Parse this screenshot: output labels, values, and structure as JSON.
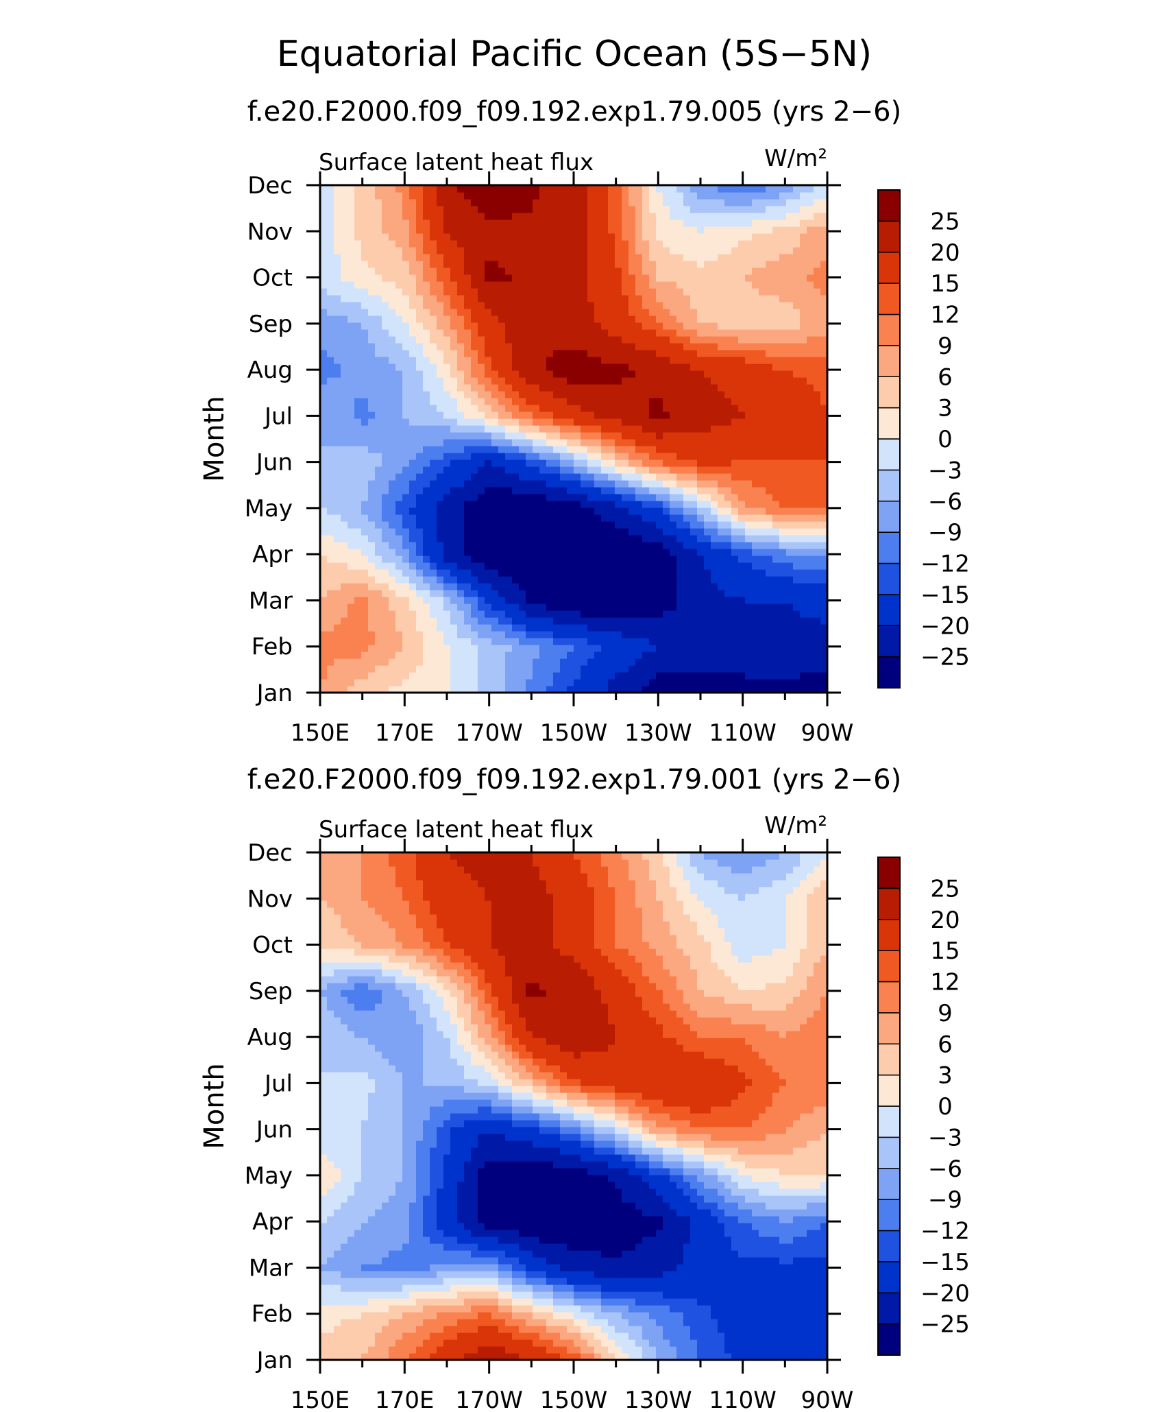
{
  "figure": {
    "title": "Equatorial Pacific Ocean (5S−5N)"
  },
  "colors": [
    "#00007f",
    "#0019a6",
    "#0033cc",
    "#1f52e0",
    "#4d7ef0",
    "#7ea3f5",
    "#a9c4f9",
    "#d2e4fc",
    "#fde8d6",
    "#fcccad",
    "#fba880",
    "#fa8250",
    "#f05a22",
    "#da3508",
    "#b81c02",
    "#8a0000"
  ],
  "colorbar_labels": [
    "−25",
    "−20",
    "−15",
    "−12",
    "−9",
    "−6",
    "−3",
    "0",
    "3",
    "6",
    "9",
    "12",
    "15",
    "20",
    "25"
  ],
  "chart_data": [
    {
      "type": "heatmap",
      "subtitle": "f.e20.F2000.f09_f09.192.exp1.79.005 (yrs 2−6)",
      "variable": "Surface latent heat flux",
      "units": "W/m²",
      "ylabel": "Month",
      "x_tick_labels": [
        "150E",
        "170E",
        "170W",
        "150W",
        "130W",
        "110W",
        "90W"
      ],
      "y_tick_labels": [
        "Jan",
        "Feb",
        "Mar",
        "Apr",
        "May",
        "Jun",
        "Jul",
        "Aug",
        "Sep",
        "Oct",
        "Nov",
        "Dec"
      ],
      "x": [
        150,
        160,
        170,
        180,
        190,
        200,
        210,
        220,
        230,
        240,
        250,
        260,
        270
      ],
      "y": [
        "Jan",
        "Feb",
        "Mar",
        "Apr",
        "May",
        "Jun",
        "Jul",
        "Aug",
        "Sep",
        "Oct",
        "Nov",
        "Dec"
      ],
      "levels": [
        -25,
        -20,
        -15,
        -12,
        -9,
        -6,
        -3,
        0,
        3,
        6,
        9,
        12,
        15,
        20,
        25
      ],
      "z": [
        [
          9,
          4,
          2,
          0,
          -4,
          -10,
          -16,
          -22,
          -28,
          -30,
          -28,
          -26,
          -28
        ],
        [
          10,
          10,
          6,
          0,
          -4,
          -8,
          -12,
          -16,
          -20,
          -20,
          -20,
          -22,
          -22
        ],
        [
          6,
          10,
          4,
          -4,
          -16,
          -26,
          -30,
          -30,
          -28,
          -22,
          -20,
          -20,
          -18
        ],
        [
          3,
          0,
          -8,
          -22,
          -30,
          -30,
          -30,
          -30,
          -28,
          -20,
          -14,
          -10,
          -8
        ],
        [
          -3,
          -6,
          -14,
          -22,
          -30,
          -30,
          -28,
          -22,
          -15,
          -4,
          8,
          12,
          12
        ],
        [
          -6,
          -4,
          -8,
          -14,
          -20,
          -14,
          -6,
          4,
          12,
          16,
          15,
          15,
          15
        ],
        [
          -6,
          -10,
          -6,
          -3,
          4,
          12,
          18,
          22,
          26,
          22,
          20,
          18,
          15
        ],
        [
          -10,
          -8,
          -6,
          2,
          14,
          24,
          28,
          26,
          24,
          20,
          18,
          15,
          14
        ],
        [
          -8,
          -6,
          0,
          8,
          18,
          24,
          22,
          18,
          12,
          6,
          4,
          4,
          8
        ],
        [
          -2,
          2,
          4,
          14,
          26,
          24,
          22,
          16,
          6,
          4,
          6,
          8,
          10
        ],
        [
          -2,
          4,
          8,
          20,
          24,
          24,
          22,
          14,
          2,
          0,
          2,
          4,
          8
        ],
        [
          -2,
          4,
          10,
          24,
          28,
          26,
          22,
          14,
          0,
          -8,
          -12,
          -8,
          -2
        ]
      ]
    },
    {
      "type": "heatmap",
      "subtitle": "f.e20.F2000.f09_f09.192.exp1.79.001 (yrs 2−6)",
      "variable": "Surface latent heat flux",
      "units": "W/m²",
      "ylabel": "Month",
      "x_tick_labels": [
        "150E",
        "170E",
        "170W",
        "150W",
        "130W",
        "110W",
        "90W"
      ],
      "y_tick_labels": [
        "Jan",
        "Feb",
        "Mar",
        "Apr",
        "May",
        "Jun",
        "Jul",
        "Aug",
        "Sep",
        "Oct",
        "Nov",
        "Dec"
      ],
      "x": [
        150,
        160,
        170,
        180,
        190,
        200,
        210,
        220,
        230,
        240,
        250,
        260,
        270
      ],
      "y": [
        "Jan",
        "Feb",
        "Mar",
        "Apr",
        "May",
        "Jun",
        "Jul",
        "Aug",
        "Sep",
        "Oct",
        "Nov",
        "Dec"
      ],
      "levels": [
        -25,
        -20,
        -15,
        -12,
        -9,
        -6,
        -3,
        0,
        3,
        6,
        9,
        12,
        15,
        20,
        25
      ],
      "z": [
        [
          4,
          6,
          12,
          18,
          24,
          20,
          14,
          4,
          -6,
          -12,
          -16,
          -16,
          -18
        ],
        [
          2,
          3,
          6,
          10,
          12,
          6,
          0,
          -6,
          -10,
          -14,
          -18,
          -18,
          -18
        ],
        [
          -6,
          -9,
          -10,
          -8,
          -6,
          -16,
          -22,
          -24,
          -22,
          -18,
          -16,
          -16,
          -16
        ],
        [
          -3,
          -6,
          -8,
          -18,
          -28,
          -30,
          -30,
          -28,
          -26,
          -18,
          -12,
          -9,
          -12
        ],
        [
          3,
          -3,
          -6,
          -16,
          -28,
          -30,
          -28,
          -24,
          -16,
          -8,
          0,
          3,
          3
        ],
        [
          -3,
          -3,
          -6,
          -14,
          -20,
          -16,
          -10,
          -2,
          8,
          12,
          12,
          9,
          6
        ],
        [
          -3,
          -2,
          -6,
          -6,
          -2,
          6,
          14,
          18,
          20,
          20,
          16,
          12,
          12
        ],
        [
          -3,
          -6,
          -9,
          -3,
          8,
          20,
          24,
          20,
          16,
          12,
          12,
          9,
          12
        ],
        [
          -6,
          -12,
          -6,
          2,
          14,
          26,
          24,
          18,
          12,
          6,
          3,
          4,
          9
        ],
        [
          3,
          6,
          9,
          15,
          20,
          22,
          18,
          12,
          8,
          4,
          -2,
          0,
          6
        ],
        [
          6,
          9,
          12,
          18,
          20,
          22,
          18,
          12,
          6,
          0,
          -3,
          0,
          6
        ],
        [
          6,
          9,
          14,
          20,
          22,
          20,
          15,
          10,
          4,
          -6,
          -9,
          -6,
          0
        ]
      ]
    }
  ]
}
